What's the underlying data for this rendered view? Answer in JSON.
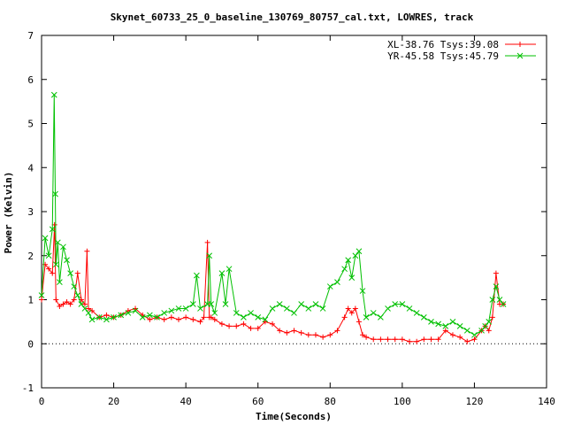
{
  "chart_data": {
    "type": "line",
    "title": "Skynet_60733_25_0_baseline_130769_80757_cal.txt, LOWRES, track",
    "xlabel": "Time(Seconds)",
    "ylabel": "Power (Kelvin)",
    "xlim": [
      0,
      140
    ],
    "ylim": [
      -1,
      7
    ],
    "xticks": [
      0,
      20,
      40,
      60,
      80,
      100,
      120,
      140
    ],
    "yticks": [
      -1,
      0,
      1,
      2,
      3,
      4,
      5,
      6,
      7
    ],
    "legend_position": "top-right",
    "series": [
      {
        "name": "XL-38.76 Tsys:39.08",
        "color": "#ff0000",
        "marker": "plus",
        "x": [
          0,
          1,
          2,
          3,
          3.6,
          4,
          5,
          6,
          7,
          8,
          9,
          10,
          11,
          12,
          12.6,
          13,
          14,
          16,
          18,
          20,
          22,
          24,
          26,
          28,
          30,
          32,
          34,
          36,
          38,
          40,
          42,
          44,
          45,
          46,
          46.5,
          47,
          48,
          50,
          52,
          54,
          56,
          58,
          60,
          62,
          64,
          66,
          68,
          70,
          72,
          74,
          76,
          78,
          80,
          82,
          84,
          85,
          86,
          87,
          88,
          89,
          90,
          92,
          94,
          96,
          98,
          100,
          102,
          104,
          106,
          108,
          110,
          112,
          114,
          116,
          118,
          120,
          122,
          123,
          124,
          125,
          126,
          127,
          128
        ],
        "y": [
          1.0,
          1.8,
          1.7,
          1.6,
          2.7,
          1.0,
          0.85,
          0.9,
          0.95,
          0.9,
          1.0,
          1.6,
          1.0,
          0.9,
          2.1,
          0.8,
          0.75,
          0.6,
          0.65,
          0.6,
          0.65,
          0.75,
          0.8,
          0.65,
          0.55,
          0.6,
          0.55,
          0.6,
          0.55,
          0.6,
          0.55,
          0.5,
          0.6,
          2.3,
          0.6,
          0.6,
          0.55,
          0.45,
          0.4,
          0.4,
          0.45,
          0.35,
          0.35,
          0.5,
          0.45,
          0.3,
          0.25,
          0.3,
          0.25,
          0.2,
          0.2,
          0.15,
          0.2,
          0.3,
          0.6,
          0.8,
          0.7,
          0.8,
          0.5,
          0.2,
          0.15,
          0.1,
          0.1,
          0.1,
          0.1,
          0.1,
          0.05,
          0.05,
          0.1,
          0.1,
          0.1,
          0.3,
          0.2,
          0.15,
          0.05,
          0.1,
          0.3,
          0.4,
          0.3,
          0.6,
          1.6,
          0.9,
          0.9
        ]
      },
      {
        "name": "YR-45.58 Tsys:45.79",
        "color": "#00c000",
        "marker": "x",
        "x": [
          0,
          1,
          2,
          3,
          3.5,
          3.8,
          4,
          4.5,
          5,
          6,
          7,
          8,
          9,
          10,
          11,
          12,
          13,
          14,
          16,
          18,
          20,
          22,
          24,
          26,
          28,
          30,
          32,
          34,
          36,
          38,
          40,
          42,
          43,
          44,
          46,
          46.5,
          47,
          48,
          50,
          51,
          52,
          54,
          56,
          58,
          60,
          62,
          64,
          66,
          68,
          70,
          72,
          74,
          76,
          78,
          80,
          82,
          84,
          85,
          86,
          87,
          88,
          89,
          90,
          92,
          94,
          96,
          98,
          100,
          102,
          104,
          106,
          108,
          110,
          112,
          114,
          116,
          118,
          120,
          122,
          123,
          124,
          125,
          126,
          127,
          128
        ],
        "y": [
          1.1,
          2.4,
          2.0,
          2.6,
          5.65,
          3.4,
          1.8,
          2.3,
          1.4,
          2.2,
          1.9,
          1.6,
          1.3,
          1.1,
          0.9,
          0.8,
          0.7,
          0.55,
          0.6,
          0.55,
          0.6,
          0.65,
          0.7,
          0.75,
          0.6,
          0.65,
          0.6,
          0.7,
          0.75,
          0.8,
          0.8,
          0.9,
          1.55,
          0.8,
          0.9,
          2.0,
          0.9,
          0.7,
          1.6,
          0.9,
          1.7,
          0.7,
          0.6,
          0.7,
          0.6,
          0.55,
          0.8,
          0.9,
          0.8,
          0.7,
          0.9,
          0.8,
          0.9,
          0.8,
          1.3,
          1.4,
          1.7,
          1.9,
          1.5,
          2.0,
          2.1,
          1.2,
          0.6,
          0.7,
          0.6,
          0.8,
          0.9,
          0.9,
          0.8,
          0.7,
          0.6,
          0.5,
          0.45,
          0.4,
          0.5,
          0.4,
          0.3,
          0.2,
          0.3,
          0.4,
          0.5,
          1.0,
          1.3,
          1.0,
          0.9
        ]
      }
    ]
  }
}
